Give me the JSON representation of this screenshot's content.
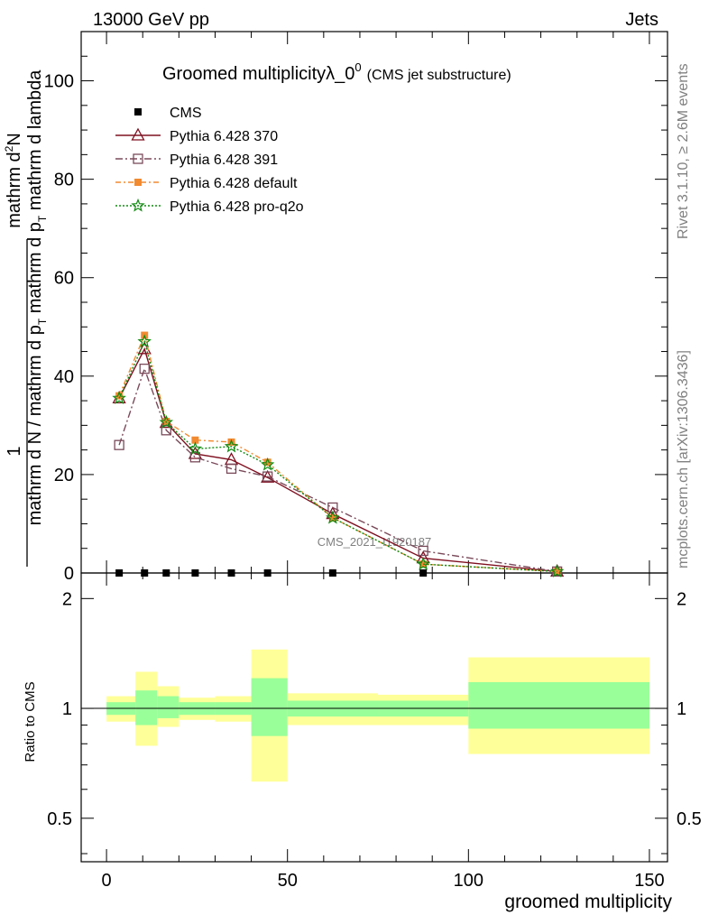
{
  "header": {
    "left": "13000 GeV pp",
    "right": "Jets",
    "title_main": "Groomed multiplicityλ_0",
    "title_sup": "0",
    "title_sub": "(CMS jet substructure)"
  },
  "side_labels": {
    "rivet": "Rivet 3.1.10, ≥ 2.6M events",
    "mcplots": "mcplots.cern.ch [arXiv:1306.3436]"
  },
  "watermark": "CMS_2021_I1920187",
  "ylabel_main": {
    "numer_top": "1",
    "numer": "mathrm d",
    "numer_sup": "2",
    "numer_end": "N",
    "denom": "mathrm d N / mathrm d p",
    "denom_sub": "T",
    "denom_end": " mathrm d p",
    "denom_sub2": "T",
    "denom_tail": " mathrm d lambda"
  },
  "ylabel_ratio": "Ratio to CMS",
  "xlabel": "groomed multiplicity",
  "colors": {
    "cms": "#000000",
    "p370": "#7f1020",
    "p391": "#7a4a5a",
    "pdefault": "#f28a30",
    "proq2o": "#118a11",
    "band_outer": "#ffff99",
    "band_inner": "#99ff99"
  },
  "chart_data": [
    {
      "type": "line",
      "xlim": [
        -7,
        155
      ],
      "ylim": [
        0,
        110
      ],
      "y_ticks": [
        0,
        20,
        40,
        60,
        80,
        100
      ],
      "y_tick_labels": [
        "0",
        "20",
        "40",
        "60",
        "80",
        "100"
      ],
      "series": [
        {
          "name": "CMS",
          "marker": "square",
          "x": [
            3.5,
            10.5,
            16.5,
            24.5,
            34.5,
            44.5,
            62.5,
            87.5,
            124.5
          ],
          "y": [
            0,
            0,
            0,
            0,
            0,
            0,
            0,
            0,
            0
          ]
        },
        {
          "name": "Pythia 6.428 370",
          "marker": "triangle",
          "x": [
            3.5,
            10.5,
            16.5,
            24.5,
            34.5,
            44.5,
            62.5,
            87.5,
            124.5
          ],
          "y": [
            35.5,
            45.5,
            30.5,
            24.2,
            23.0,
            19.4,
            12.0,
            3.0,
            0.3
          ]
        },
        {
          "name": "Pythia 6.428 391",
          "marker": "open-square",
          "x": [
            3.5,
            10.5,
            16.5,
            24.5,
            34.5,
            44.5,
            62.5,
            87.5,
            124.5
          ],
          "y": [
            26.0,
            41.5,
            29.0,
            23.5,
            21.2,
            19.6,
            13.3,
            4.5,
            0.3
          ]
        },
        {
          "name": "Pythia 6.428 default",
          "marker": "filled-square",
          "x": [
            3.5,
            10.5,
            16.5,
            24.5,
            34.5,
            44.5,
            62.5,
            87.5,
            124.5
          ],
          "y": [
            36.0,
            48.3,
            30.8,
            27.0,
            26.6,
            22.5,
            11.2,
            1.8,
            0.3
          ]
        },
        {
          "name": "Pythia 6.428 pro-q2o",
          "marker": "star",
          "x": [
            3.5,
            10.5,
            16.5,
            24.5,
            34.5,
            44.5,
            62.5,
            87.5,
            124.5
          ],
          "y": [
            35.5,
            47.0,
            30.6,
            25.2,
            25.7,
            22.0,
            11.2,
            1.8,
            0.3
          ]
        }
      ]
    },
    {
      "type": "area",
      "xlabel": "groomed multiplicity",
      "ylabel": "Ratio to CMS",
      "xlim": [
        -7,
        155
      ],
      "ylim": [
        0.38,
        2.35
      ],
      "y_ticks": [
        0.5,
        1,
        2
      ],
      "y_tick_labels": [
        "0.5",
        "1",
        "2"
      ],
      "x_ticks": [
        0,
        50,
        100,
        150
      ],
      "x_tick_labels": [
        "0",
        "50",
        "100",
        "150"
      ],
      "bins": [
        {
          "x0": 0,
          "x1": 8,
          "outer": [
            0.92,
            1.08
          ],
          "inner": [
            0.96,
            1.04
          ]
        },
        {
          "x0": 8,
          "x1": 14,
          "outer": [
            0.79,
            1.26
          ],
          "inner": [
            0.9,
            1.12
          ]
        },
        {
          "x0": 14,
          "x1": 20,
          "outer": [
            0.89,
            1.15
          ],
          "inner": [
            0.94,
            1.08
          ]
        },
        {
          "x0": 20,
          "x1": 30,
          "outer": [
            0.93,
            1.07
          ],
          "inner": [
            0.96,
            1.04
          ]
        },
        {
          "x0": 30,
          "x1": 40,
          "outer": [
            0.92,
            1.08
          ],
          "inner": [
            0.96,
            1.04
          ]
        },
        {
          "x0": 40,
          "x1": 50,
          "outer": [
            0.63,
            1.45
          ],
          "inner": [
            0.84,
            1.21
          ]
        },
        {
          "x0": 50,
          "x1": 75,
          "outer": [
            0.9,
            1.1
          ],
          "inner": [
            0.95,
            1.05
          ]
        },
        {
          "x0": 75,
          "x1": 100,
          "outer": [
            0.9,
            1.09
          ],
          "inner": [
            0.95,
            1.05
          ]
        },
        {
          "x0": 100,
          "x1": 150,
          "outer": [
            0.75,
            1.38
          ],
          "inner": [
            0.88,
            1.18
          ]
        }
      ]
    }
  ]
}
